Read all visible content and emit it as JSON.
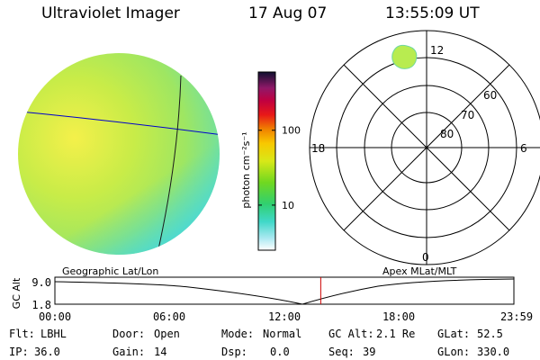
{
  "header": {
    "title": "Ultraviolet Imager",
    "date": "17 Aug 07",
    "time": "13:55:09 UT"
  },
  "colorbar": {
    "label": "photon cm⁻²s⁻¹",
    "ticks": [
      "100",
      "10"
    ],
    "levels": [
      100,
      10
    ],
    "range": [
      2.5,
      600
    ],
    "scale": "log"
  },
  "polar": {
    "mlt_labels": [
      "12",
      "18",
      "6",
      "0"
    ],
    "lat_labels": [
      "60",
      "70",
      "80"
    ]
  },
  "timeline": {
    "left_label": "Geographic Lat/Lon",
    "right_label": "Apex MLat/MLT",
    "axis_title": "GC Alt",
    "y_ticks": [
      "9.0",
      "1.8"
    ],
    "x_ticks": [
      "00:00",
      "06:00",
      "12:00",
      "18:00",
      "23:59"
    ],
    "current_hour": 13.9
  },
  "info": {
    "flt_label": "Flt:",
    "flt_value": "LBHL",
    "door_label": "Door:",
    "door_value": "Open",
    "mode_label": "Mode:",
    "mode_value": "Normal",
    "gcalt_label": "GC Alt:",
    "gcalt_value": "2.1 Re",
    "glat_label": "GLat:",
    "glat_value": "52.5",
    "ip_label": "IP:",
    "ip_value": "36.0",
    "gain_label": "Gain:",
    "gain_value": "14",
    "dsp_label": "Dsp:",
    "dsp_value": "0.0",
    "seq_label": "Seq:",
    "seq_value": "39",
    "glon_label": "GLon:",
    "glon_value": "330.0"
  },
  "colors": {
    "grid": "#000000",
    "geo_line": "#0000cc",
    "marker": "#cc0000"
  }
}
